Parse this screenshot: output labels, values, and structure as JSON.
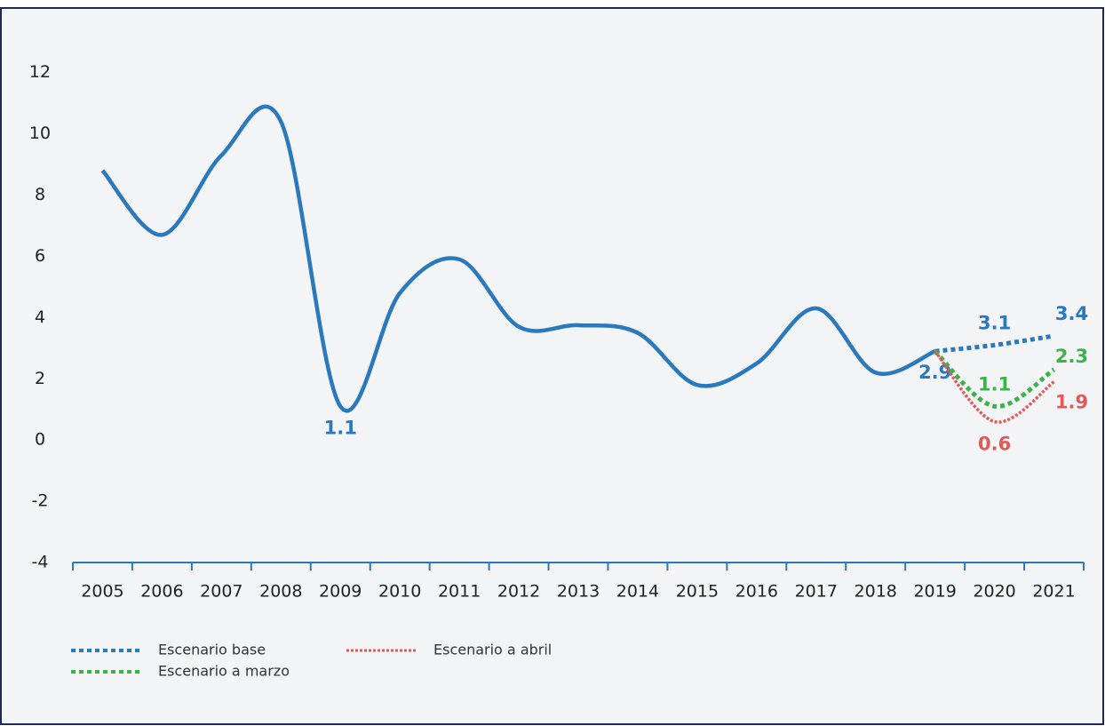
{
  "chart_data": {
    "type": "line",
    "categories": [
      "2005",
      "2006",
      "2007",
      "2008",
      "2009",
      "2010",
      "2011",
      "2012",
      "2013",
      "2014",
      "2015",
      "2016",
      "2017",
      "2018",
      "2019",
      "2020",
      "2021"
    ],
    "series": [
      {
        "color": "#2a78bd",
        "style": "solid",
        "values": [
          8.8,
          6.7,
          9.3,
          10.4,
          1.1,
          4.8,
          5.9,
          3.7,
          3.75,
          3.5,
          1.8,
          2.5,
          4.3,
          2.2,
          2.9,
          null,
          null
        ],
        "value_labels": [
          null,
          null,
          null,
          null,
          "1.1",
          null,
          null,
          null,
          null,
          null,
          null,
          null,
          null,
          null,
          "2.9",
          null,
          null
        ]
      },
      {
        "name": "Escenario base",
        "color": "#2a78bd",
        "style": "dotted",
        "values": [
          null,
          null,
          null,
          null,
          null,
          null,
          null,
          null,
          null,
          null,
          null,
          null,
          null,
          null,
          2.9,
          3.1,
          3.4
        ],
        "value_labels": [
          null,
          null,
          null,
          null,
          null,
          null,
          null,
          null,
          null,
          null,
          null,
          null,
          null,
          null,
          null,
          "3.1",
          "3.4"
        ]
      },
      {
        "name": "Escenario a marzo",
        "color": "#3db24b",
        "style": "dotted",
        "values": [
          null,
          null,
          null,
          null,
          null,
          null,
          null,
          null,
          null,
          null,
          null,
          null,
          null,
          null,
          2.9,
          1.1,
          2.3
        ],
        "value_labels": [
          null,
          null,
          null,
          null,
          null,
          null,
          null,
          null,
          null,
          null,
          null,
          null,
          null,
          null,
          null,
          "1.1",
          "2.3"
        ]
      },
      {
        "name": "Escenario a abril",
        "color": "#e05a5a",
        "style": "dotted-fine",
        "values": [
          null,
          null,
          null,
          null,
          null,
          null,
          null,
          null,
          null,
          null,
          null,
          null,
          null,
          null,
          2.9,
          0.6,
          1.9
        ],
        "value_labels": [
          null,
          null,
          null,
          null,
          null,
          null,
          null,
          null,
          null,
          null,
          null,
          null,
          null,
          null,
          null,
          "0.6",
          "1.9"
        ]
      }
    ],
    "ylim": [
      -4,
      13.5
    ],
    "yticks": [
      -4,
      -2,
      0,
      2,
      4,
      6,
      8,
      10,
      12
    ],
    "grid": false
  }
}
